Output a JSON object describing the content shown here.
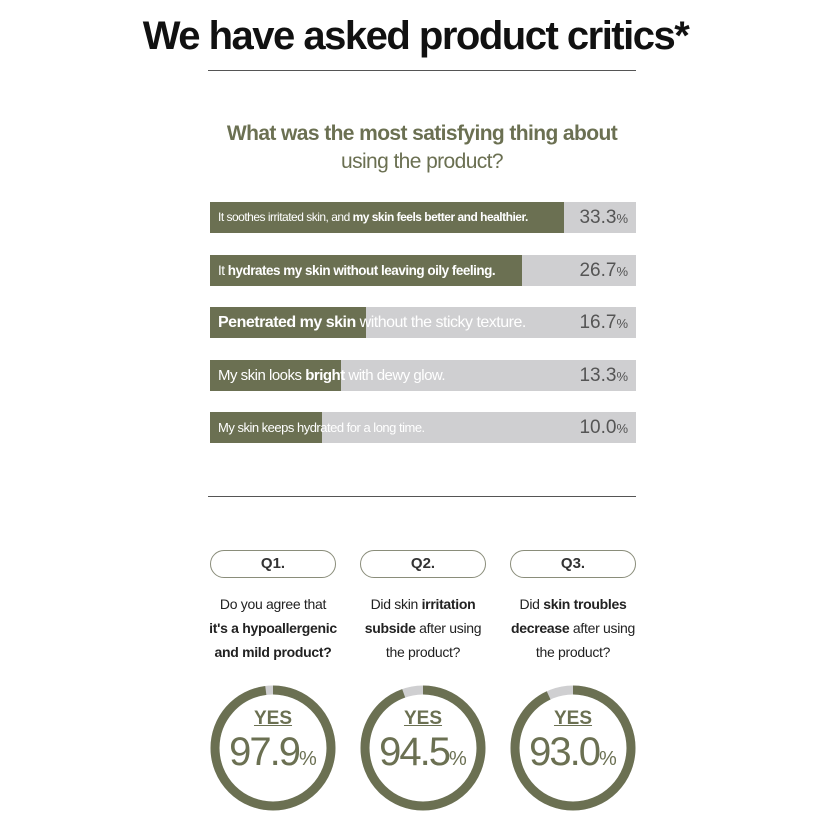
{
  "header": {
    "title": "We have asked product critics*"
  },
  "chart_data": [
    {
      "type": "bar",
      "title": "What was the most satisfying thing about using the product?",
      "title_line1": "What was the most satisfying thing about",
      "title_line2": "using the product?",
      "categories": [
        "It soothes irritated skin, and my skin feels better and healthier.",
        "It hydrates my skin without leaving oily feeling.",
        "Penetrated my skin without the sticky texture.",
        "My skin looks bright with dewy glow.",
        "My skin keeps hydrated for a long time."
      ],
      "values": [
        33.3,
        26.7,
        16.7,
        13.3,
        10.0
      ],
      "value_labels": [
        "33.3",
        "26.7",
        "16.7",
        "13.3",
        "10.0"
      ],
      "unit": "%",
      "label_parts": [
        [
          "It soothes irritated skin, and ",
          "my skin feels better and healthier."
        ],
        [
          "It ",
          "hydrates my skin without leaving oily feeling."
        ],
        [
          "",
          "Penetrated my skin",
          " without the sticky texture."
        ],
        [
          "My skin looks ",
          "bright",
          " with dewy glow."
        ],
        [
          "My skin keeps hydrated for a long time."
        ]
      ],
      "colors": {
        "fill": "#6b7052",
        "track": "#cfcfd1"
      }
    },
    {
      "type": "pie",
      "categories": [
        "Q1.",
        "Q2.",
        "Q3."
      ],
      "series": [
        {
          "name": "YES",
          "values": [
            97.9,
            94.5,
            93.0
          ]
        }
      ],
      "unit": "%",
      "colors": {
        "fill": "#6b7052",
        "track": "#cfcfd1"
      }
    }
  ],
  "questions": [
    {
      "tag": "Q1.",
      "yes": "YES",
      "value": "97.9",
      "unit": "%",
      "lines": [
        [
          "Do you agree that",
          ""
        ],
        [
          "",
          "it's a hypoallergenic"
        ],
        [
          "",
          "and mild product?"
        ]
      ]
    },
    {
      "tag": "Q2.",
      "yes": "YES",
      "value": "94.5",
      "unit": "%",
      "lines": [
        [
          "Did skin ",
          "irritation"
        ],
        [
          "",
          "subside",
          " after using"
        ],
        [
          "the product?"
        ]
      ]
    },
    {
      "tag": "Q3.",
      "yes": "YES",
      "value": "93.0",
      "unit": "%",
      "lines": [
        [
          "Did ",
          "skin troubles"
        ],
        [
          "",
          "decrease",
          " after using"
        ],
        [
          "the product?"
        ]
      ]
    }
  ]
}
